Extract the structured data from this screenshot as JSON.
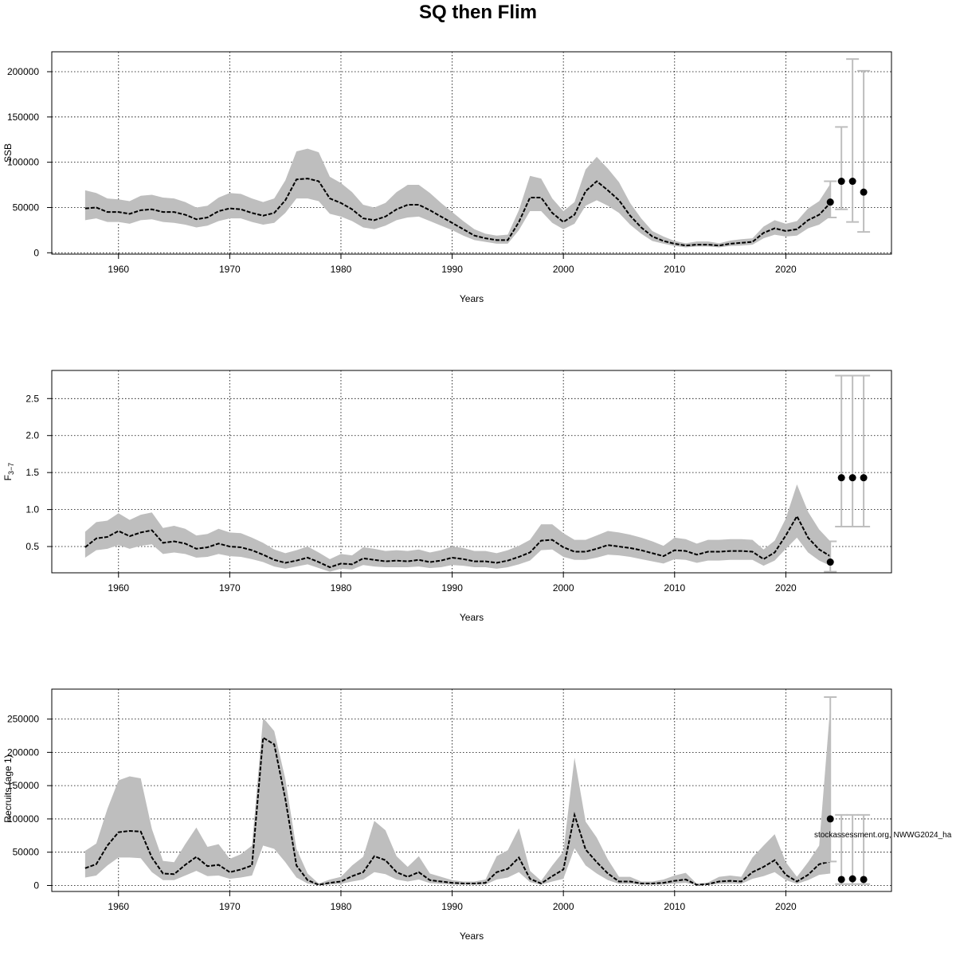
{
  "title": "SQ then Flim",
  "watermark": "stockassessment.org, NWWG2024_ha",
  "colors": {
    "band": "#bebebe",
    "line": "#000000",
    "grid": "#000000",
    "errorbar": "#bebebe",
    "point": "#000000"
  },
  "chart_data": [
    {
      "type": "line",
      "ylabel": "SSB",
      "xlabel": "Years",
      "xlim": [
        1954,
        2029.5
      ],
      "ylim": [
        -1500,
        222000
      ],
      "xticks": [
        1960,
        1970,
        1980,
        1990,
        2000,
        2010,
        2020
      ],
      "yticks": [
        0,
        50000,
        100000,
        150000,
        200000
      ],
      "ytick_labels": [
        "0",
        "50000",
        "100000",
        "150000",
        "200000"
      ],
      "grid": true,
      "x": [
        1957,
        1958,
        1959,
        1960,
        1961,
        1962,
        1963,
        1964,
        1965,
        1966,
        1967,
        1968,
        1969,
        1970,
        1971,
        1972,
        1973,
        1974,
        1975,
        1976,
        1977,
        1978,
        1979,
        1980,
        1981,
        1982,
        1983,
        1984,
        1985,
        1986,
        1987,
        1988,
        1989,
        1990,
        1991,
        1992,
        1993,
        1994,
        1995,
        1996,
        1997,
        1998,
        1999,
        2000,
        2001,
        2002,
        2003,
        2004,
        2005,
        2006,
        2007,
        2008,
        2009,
        2010,
        2011,
        2012,
        2013,
        2014,
        2015,
        2016,
        2017,
        2018,
        2019,
        2020,
        2021,
        2022,
        2023,
        2024
      ],
      "estimate": [
        49000,
        50000,
        45000,
        45000,
        43000,
        47000,
        48000,
        45000,
        45000,
        42000,
        37000,
        39000,
        46000,
        49000,
        48000,
        44000,
        41000,
        44000,
        58000,
        81000,
        82000,
        79000,
        60000,
        55000,
        48000,
        38000,
        36000,
        40000,
        48000,
        53000,
        53000,
        47000,
        40000,
        33000,
        26000,
        19000,
        16000,
        14000,
        14000,
        34000,
        61000,
        61000,
        44000,
        34000,
        42000,
        68000,
        79000,
        69000,
        58000,
        41000,
        28000,
        18000,
        13000,
        10000,
        8000,
        9000,
        9000,
        8000,
        10000,
        11000,
        12000,
        22000,
        27000,
        24000,
        26000,
        36000,
        42000,
        55000
      ],
      "lower": [
        36000,
        38000,
        34000,
        34000,
        32000,
        36000,
        37000,
        34000,
        33000,
        31000,
        28000,
        30000,
        35000,
        38000,
        38000,
        34000,
        31000,
        33000,
        44000,
        60000,
        60000,
        57000,
        43000,
        40000,
        35000,
        28000,
        26000,
        30000,
        36000,
        39000,
        40000,
        35000,
        30000,
        25000,
        19000,
        14000,
        12000,
        10000,
        10000,
        25000,
        46000,
        46000,
        33000,
        26000,
        32000,
        52000,
        58000,
        52000,
        44000,
        31000,
        21000,
        13000,
        10000,
        7500,
        6000,
        7000,
        7000,
        6000,
        7500,
        8000,
        9000,
        16000,
        20000,
        18000,
        19000,
        27000,
        31000,
        40000
      ],
      "upper": [
        69000,
        66000,
        60000,
        59000,
        57000,
        63000,
        64000,
        61000,
        60000,
        56000,
        50000,
        52000,
        61000,
        66000,
        65000,
        60000,
        56000,
        60000,
        80000,
        112000,
        115000,
        111000,
        84000,
        77000,
        67000,
        53000,
        50000,
        55000,
        67000,
        75000,
        75000,
        66000,
        55000,
        45000,
        35000,
        26000,
        21000,
        19000,
        20000,
        47000,
        85000,
        82000,
        60000,
        46000,
        56000,
        92000,
        106000,
        93000,
        78000,
        55000,
        38000,
        24000,
        18000,
        13000,
        10500,
        12500,
        12500,
        10500,
        13500,
        15000,
        16000,
        29000,
        36000,
        32000,
        35000,
        49000,
        57000,
        76000
      ],
      "forecast": [
        {
          "x": 2024.0,
          "median": 56000,
          "low": 39000,
          "high": 79000
        },
        {
          "x": 2025.0,
          "median": 79000,
          "low": 48000,
          "high": 139000
        },
        {
          "x": 2026.0,
          "median": 79000,
          "low": 34000,
          "high": 214000
        },
        {
          "x": 2027.0,
          "median": 67000,
          "low": 23000,
          "high": 201000
        }
      ]
    },
    {
      "type": "line",
      "ylabel": "F",
      "ylabel_sub": "3−7",
      "xlabel": "Years",
      "xlim": [
        1954,
        2029.5
      ],
      "ylim": [
        0.145,
        2.88
      ],
      "xticks": [
        1960,
        1970,
        1980,
        1990,
        2000,
        2010,
        2020
      ],
      "yticks": [
        0.5,
        1.0,
        1.5,
        2.0,
        2.5
      ],
      "ytick_labels": [
        "0.5",
        "1.0",
        "1.5",
        "2.0",
        "2.5"
      ],
      "grid": true,
      "x": [
        1957,
        1958,
        1959,
        1960,
        1961,
        1962,
        1963,
        1964,
        1965,
        1966,
        1967,
        1968,
        1969,
        1970,
        1971,
        1972,
        1973,
        1974,
        1975,
        1976,
        1977,
        1978,
        1979,
        1980,
        1981,
        1982,
        1983,
        1984,
        1985,
        1986,
        1987,
        1988,
        1989,
        1990,
        1991,
        1992,
        1993,
        1994,
        1995,
        1996,
        1997,
        1998,
        1999,
        2000,
        2001,
        2002,
        2003,
        2004,
        2005,
        2006,
        2007,
        2008,
        2009,
        2010,
        2011,
        2012,
        2013,
        2014,
        2015,
        2016,
        2017,
        2018,
        2019,
        2020,
        2021,
        2022,
        2023,
        2024
      ],
      "estimate": [
        0.49,
        0.61,
        0.63,
        0.71,
        0.64,
        0.69,
        0.72,
        0.55,
        0.57,
        0.54,
        0.47,
        0.49,
        0.54,
        0.5,
        0.49,
        0.45,
        0.39,
        0.32,
        0.28,
        0.31,
        0.35,
        0.29,
        0.22,
        0.27,
        0.26,
        0.34,
        0.32,
        0.3,
        0.31,
        0.3,
        0.32,
        0.29,
        0.31,
        0.35,
        0.33,
        0.3,
        0.3,
        0.28,
        0.31,
        0.36,
        0.42,
        0.58,
        0.59,
        0.49,
        0.43,
        0.43,
        0.47,
        0.52,
        0.5,
        0.48,
        0.45,
        0.41,
        0.37,
        0.45,
        0.44,
        0.39,
        0.43,
        0.43,
        0.44,
        0.44,
        0.43,
        0.33,
        0.42,
        0.65,
        0.91,
        0.62,
        0.46,
        0.37
      ],
      "lower": [
        0.35,
        0.45,
        0.47,
        0.52,
        0.47,
        0.51,
        0.53,
        0.4,
        0.42,
        0.4,
        0.35,
        0.36,
        0.4,
        0.37,
        0.36,
        0.33,
        0.29,
        0.23,
        0.2,
        0.23,
        0.26,
        0.21,
        0.16,
        0.2,
        0.19,
        0.25,
        0.23,
        0.22,
        0.22,
        0.22,
        0.23,
        0.21,
        0.22,
        0.25,
        0.24,
        0.22,
        0.22,
        0.2,
        0.22,
        0.26,
        0.31,
        0.45,
        0.46,
        0.36,
        0.32,
        0.32,
        0.35,
        0.39,
        0.38,
        0.36,
        0.33,
        0.3,
        0.27,
        0.33,
        0.32,
        0.28,
        0.31,
        0.31,
        0.32,
        0.32,
        0.32,
        0.24,
        0.31,
        0.47,
        0.62,
        0.42,
        0.31,
        0.24
      ],
      "upper": [
        0.7,
        0.83,
        0.85,
        0.95,
        0.86,
        0.93,
        0.96,
        0.75,
        0.78,
        0.74,
        0.65,
        0.67,
        0.74,
        0.69,
        0.68,
        0.62,
        0.55,
        0.46,
        0.41,
        0.45,
        0.5,
        0.42,
        0.33,
        0.4,
        0.38,
        0.49,
        0.47,
        0.44,
        0.45,
        0.44,
        0.46,
        0.42,
        0.45,
        0.5,
        0.48,
        0.44,
        0.44,
        0.41,
        0.45,
        0.51,
        0.59,
        0.8,
        0.8,
        0.68,
        0.59,
        0.59,
        0.65,
        0.71,
        0.69,
        0.66,
        0.62,
        0.57,
        0.51,
        0.62,
        0.6,
        0.54,
        0.59,
        0.59,
        0.6,
        0.6,
        0.59,
        0.46,
        0.58,
        0.88,
        1.34,
        0.97,
        0.73,
        0.57
      ],
      "forecast": [
        {
          "x": 2024.0,
          "median": 0.29,
          "low": 0.16,
          "high": 0.57
        },
        {
          "x": 2025.0,
          "median": 1.43,
          "low": 0.77,
          "high": 2.81
        },
        {
          "x": 2026.0,
          "median": 1.43,
          "low": 0.77,
          "high": 2.81
        },
        {
          "x": 2027.0,
          "median": 1.43,
          "low": 0.77,
          "high": 2.81
        }
      ]
    },
    {
      "type": "line",
      "ylabel": "Recruits (age 1)",
      "xlabel": "Years",
      "xlim": [
        1954,
        2029.5
      ],
      "ylim": [
        -9000,
        295000
      ],
      "xticks": [
        1960,
        1970,
        1980,
        1990,
        2000,
        2010,
        2020
      ],
      "yticks": [
        0,
        50000,
        100000,
        150000,
        200000,
        250000
      ],
      "ytick_labels": [
        "0",
        "50000",
        "100000",
        "150000",
        "200000",
        "250000"
      ],
      "grid": true,
      "x": [
        1957,
        1958,
        1959,
        1960,
        1961,
        1962,
        1963,
        1964,
        1965,
        1966,
        1967,
        1968,
        1969,
        1970,
        1971,
        1972,
        1973,
        1974,
        1975,
        1976,
        1977,
        1978,
        1979,
        1980,
        1981,
        1982,
        1983,
        1984,
        1985,
        1986,
        1987,
        1988,
        1989,
        1990,
        1991,
        1992,
        1993,
        1994,
        1995,
        1996,
        1997,
        1998,
        1999,
        2000,
        2001,
        2002,
        2003,
        2004,
        2005,
        2006,
        2007,
        2008,
        2009,
        2010,
        2011,
        2012,
        2013,
        2014,
        2015,
        2016,
        2017,
        2018,
        2019,
        2020,
        2021,
        2022,
        2023,
        2024
      ],
      "estimate": [
        26000,
        32000,
        60000,
        80000,
        82000,
        81000,
        42000,
        18000,
        17000,
        31000,
        43000,
        29000,
        31000,
        20000,
        24000,
        30000,
        222000,
        212000,
        130000,
        30000,
        8000,
        1000,
        4000,
        6000,
        14000,
        20000,
        44000,
        38000,
        20000,
        13000,
        20000,
        8000,
        6000,
        4000,
        3000,
        3000,
        4000,
        20000,
        25000,
        42000,
        10000,
        3000,
        14000,
        24000,
        106000,
        54000,
        35000,
        18000,
        6000,
        6000,
        3000,
        3000,
        4000,
        7000,
        9000,
        1000,
        2000,
        6000,
        7000,
        6000,
        20000,
        28000,
        38000,
        16000,
        6000,
        16000,
        32000,
        36000
      ],
      "lower": [
        12000,
        15000,
        30000,
        42000,
        42000,
        41000,
        20000,
        8000,
        8000,
        15000,
        22000,
        14000,
        15000,
        10000,
        12000,
        15000,
        60000,
        55000,
        35000,
        12000,
        3000,
        400,
        1500,
        2500,
        6000,
        9000,
        20000,
        17000,
        9000,
        6000,
        9000,
        3500,
        2500,
        1500,
        1200,
        1200,
        1500,
        9000,
        12000,
        20000,
        5000,
        1200,
        6000,
        10000,
        56000,
        30000,
        18000,
        8000,
        2500,
        2500,
        1200,
        1200,
        1500,
        3000,
        4000,
        400,
        800,
        2500,
        3000,
        2500,
        10000,
        14000,
        20000,
        8000,
        2500,
        8000,
        16000,
        18000
      ],
      "upper": [
        52000,
        63000,
        115000,
        158000,
        164000,
        161000,
        85000,
        37000,
        35000,
        62000,
        87000,
        58000,
        62000,
        40000,
        47000,
        60000,
        252000,
        232000,
        160000,
        55000,
        18000,
        3000,
        9000,
        13000,
        30000,
        43000,
        97000,
        83000,
        44000,
        28000,
        44000,
        18000,
        13000,
        8000,
        6000,
        6000,
        9000,
        44000,
        53000,
        86000,
        22000,
        7000,
        30000,
        51000,
        192000,
        96000,
        72000,
        39000,
        13000,
        13000,
        6000,
        6000,
        9000,
        15000,
        19000,
        2500,
        4500,
        13000,
        15000,
        13000,
        42000,
        60000,
        77000,
        35000,
        13000,
        35000,
        60000,
        270000
      ],
      "forecast": [
        {
          "x": 2024.0,
          "median": 100000,
          "low": 36000,
          "high": 283000
        },
        {
          "x": 2025.0,
          "median": 9000,
          "low": 2000,
          "high": 106000
        },
        {
          "x": 2026.0,
          "median": 10000,
          "low": 2000,
          "high": 106000
        },
        {
          "x": 2027.0,
          "median": 9000,
          "low": 2000,
          "high": 106000
        }
      ]
    }
  ]
}
